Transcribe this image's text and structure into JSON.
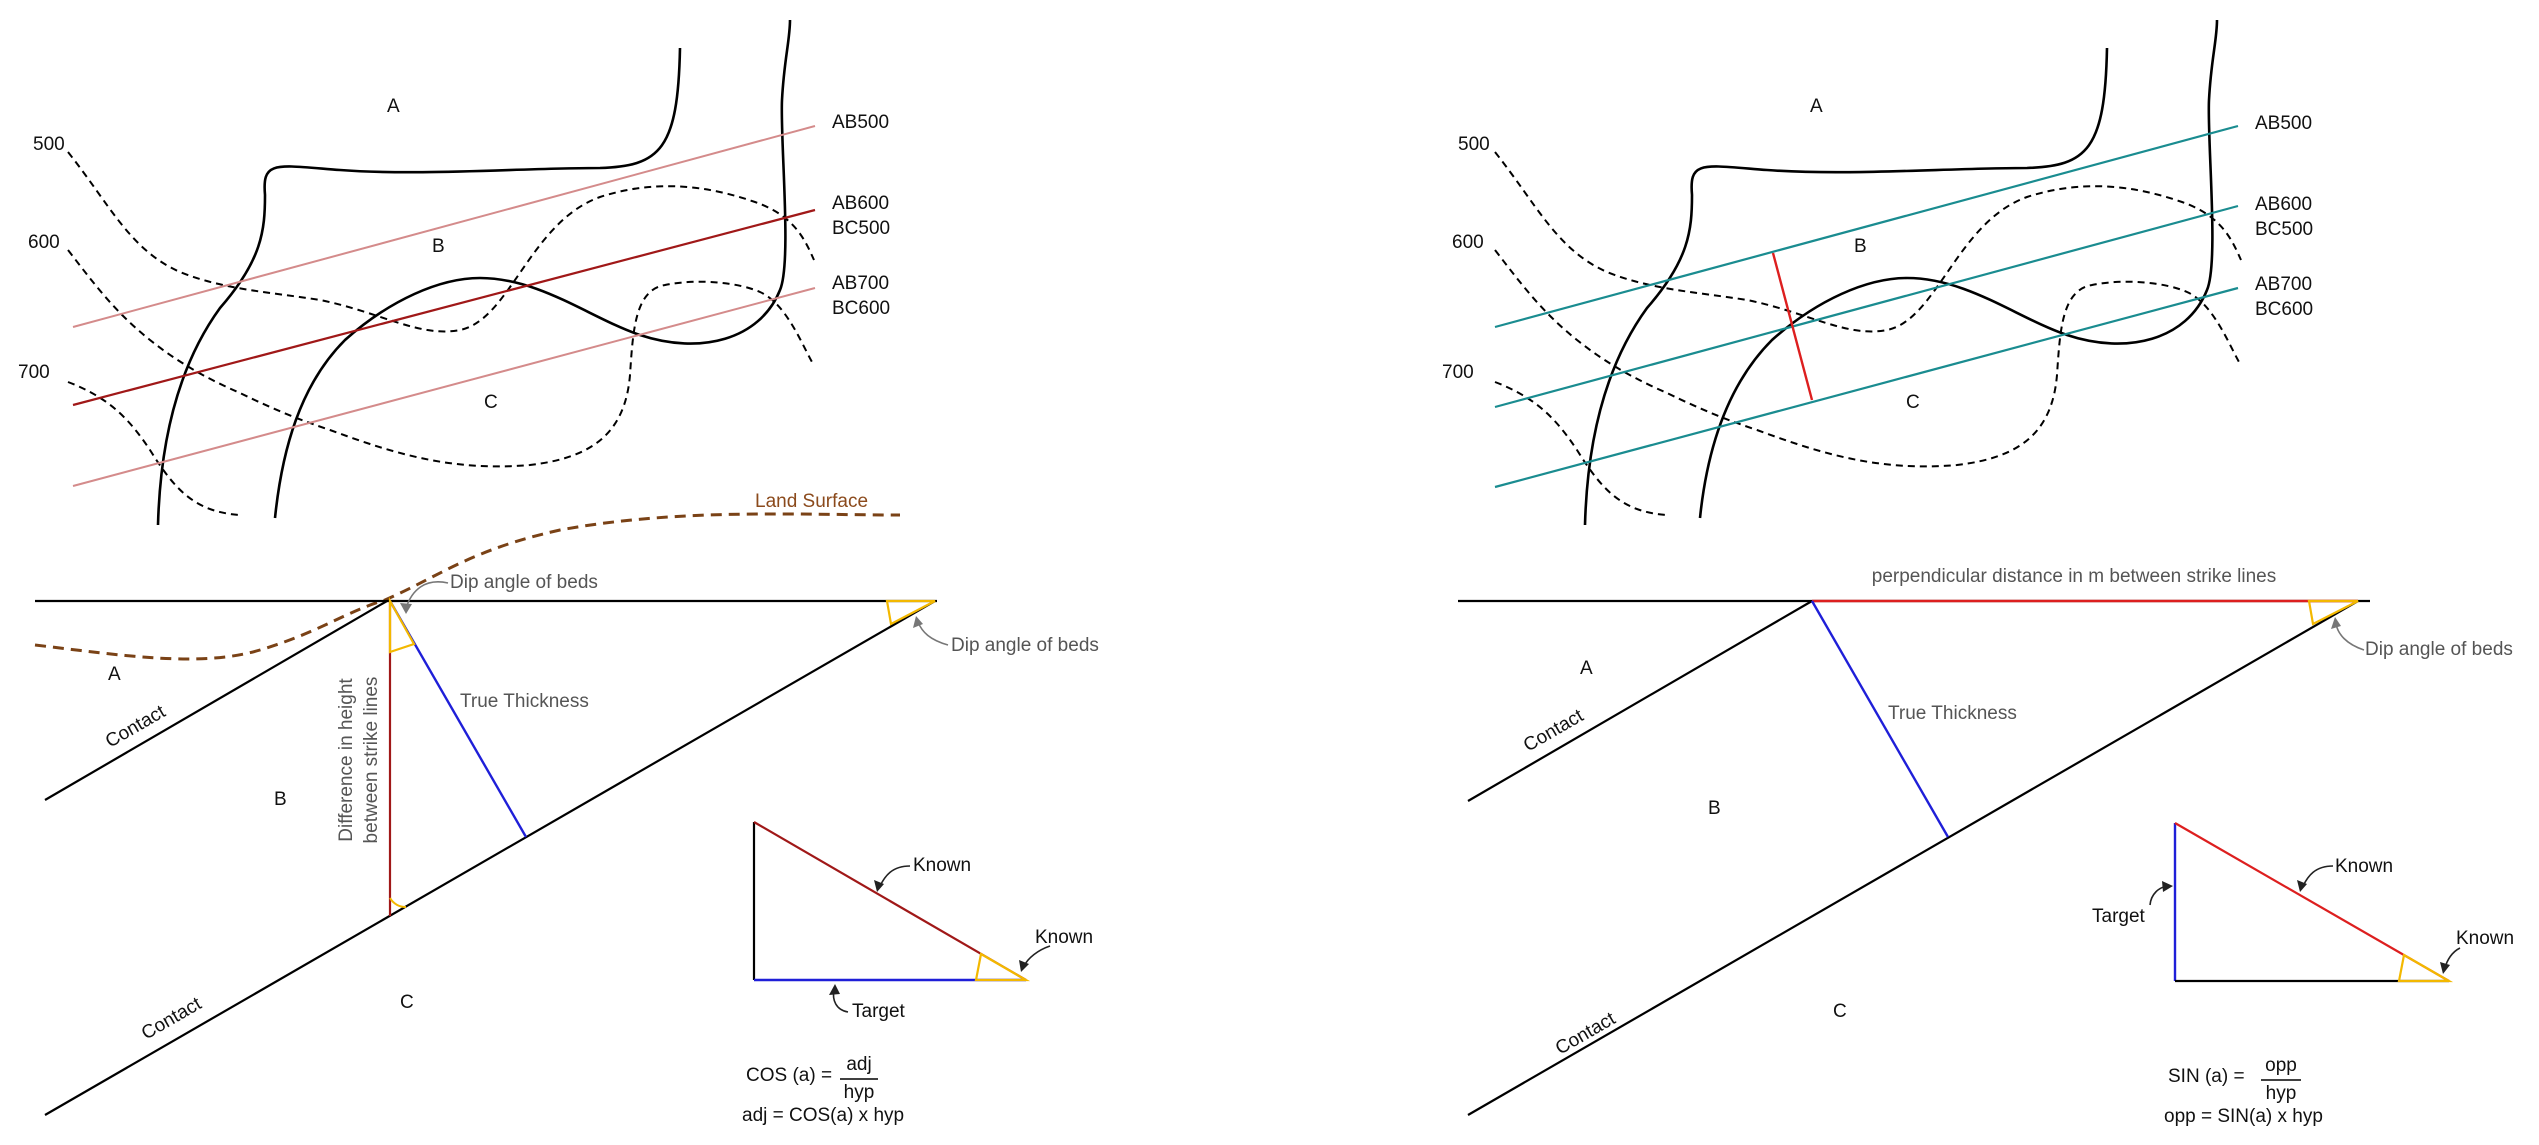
{
  "colors": {
    "strike_light": "#d48b8b",
    "strike_dark": "#a01818",
    "strike_teal": "#1a8c90",
    "true_thickness": "#1f1fd8",
    "height_line": "#a01818",
    "perp_line": "#dd1f1f",
    "angle_arc": "#f3b800",
    "land_surface": "#7a4216"
  },
  "left": {
    "map": {
      "contour_labels": [
        "500",
        "600",
        "700"
      ],
      "unit_labels": [
        "A",
        "B",
        "C"
      ],
      "strike_labels": [
        "AB500",
        "AB600",
        "BC500",
        "AB700",
        "BC600"
      ]
    },
    "section": {
      "land_surface_label": "Land Surface",
      "dip_label_top": "Dip angle of beds",
      "dip_label_right": "Dip angle of beds",
      "true_thickness_label": "True Thickness",
      "height_label_line1": "Difference in height",
      "height_label_line2": "between strike lines",
      "contact_label": "Contact",
      "unit_labels": [
        "A",
        "B",
        "C"
      ]
    },
    "triangle": {
      "known_label": "Known",
      "target_label": "Target"
    },
    "formula": {
      "lhs": "COS (a) =",
      "numerator": "adj",
      "denominator": "hyp",
      "line2": "adj = COS(a) x hyp"
    }
  },
  "right": {
    "map": {
      "contour_labels": [
        "500",
        "600",
        "700"
      ],
      "unit_labels": [
        "A",
        "B",
        "C"
      ],
      "strike_labels": [
        "AB500",
        "AB600",
        "BC500",
        "AB700",
        "BC600"
      ]
    },
    "section": {
      "perp_label": "perpendicular distance in m between strike lines",
      "dip_label": "Dip angle of beds",
      "true_thickness_label": "True Thickness",
      "contact_label": "Contact",
      "unit_labels": [
        "A",
        "B",
        "C"
      ]
    },
    "triangle": {
      "known_label": "Known",
      "target_label": "Target"
    },
    "formula": {
      "lhs": "SIN (a) =",
      "numerator": "opp",
      "denominator": "hyp",
      "line2": "opp = SIN(a) x hyp"
    }
  }
}
